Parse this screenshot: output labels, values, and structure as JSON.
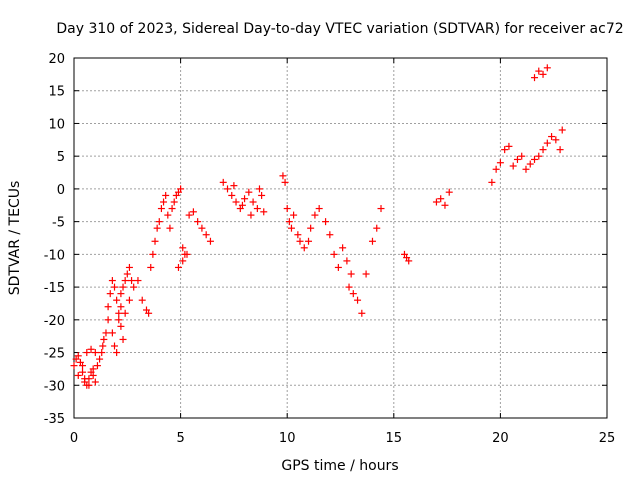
{
  "chart_data": {
    "type": "scatter",
    "title": "Day 310 of 2023, Sidereal Day-to-day VTEC variation (SDTVAR) for receiver ac72",
    "xlabel": "GPS time / hours",
    "ylabel": "SDTVAR / TECUs",
    "xlim": [
      0,
      25
    ],
    "ylim": [
      -35,
      20
    ],
    "xticks": [
      0,
      5,
      10,
      15,
      20,
      25
    ],
    "yticks": [
      -35,
      -30,
      -25,
      -20,
      -15,
      -10,
      -5,
      0,
      5,
      10,
      15,
      20
    ],
    "grid": true,
    "marker": "+",
    "color": "#ff0000",
    "series": [
      {
        "name": "SDTVAR",
        "x": [
          0.0,
          0.1,
          0.2,
          0.3,
          0.4,
          0.5,
          0.6,
          0.7,
          0.8,
          0.9,
          1.0,
          0.2,
          0.4,
          0.6,
          0.8,
          1.0,
          0.5,
          0.7,
          0.9,
          1.1,
          1.3,
          1.4,
          1.5,
          1.6,
          1.2,
          1.35,
          1.6,
          1.7,
          1.8,
          1.9,
          2.0,
          2.1,
          2.2,
          2.3,
          1.8,
          1.9,
          2.0,
          2.1,
          2.2,
          2.3,
          2.4,
          2.5,
          2.6,
          2.7,
          2.2,
          2.4,
          2.6,
          2.8,
          3.0,
          3.2,
          3.4,
          3.5,
          3.6,
          3.7,
          3.8,
          3.9,
          4.0,
          4.1,
          4.2,
          4.3,
          4.4,
          4.5,
          4.6,
          4.7,
          4.8,
          4.9,
          5.0,
          5.1,
          5.2,
          4.9,
          5.1,
          5.3,
          5.4,
          5.6,
          5.8,
          6.0,
          6.2,
          6.4,
          7.0,
          7.2,
          7.4,
          7.6,
          7.8,
          8.0,
          8.2,
          8.4,
          8.6,
          8.8,
          8.9,
          7.5,
          7.9,
          8.3,
          8.7,
          9.8,
          9.9,
          10.0,
          10.1,
          10.2,
          10.3,
          10.5,
          10.6,
          10.8,
          11.0,
          11.1,
          11.3,
          11.5,
          11.8,
          12.0,
          12.2,
          12.4,
          12.6,
          12.8,
          13.0,
          12.9,
          13.1,
          13.3,
          13.5,
          13.7,
          14.0,
          14.2,
          14.4,
          15.5,
          15.6,
          15.7,
          17.0,
          17.2,
          17.4,
          17.6,
          19.6,
          19.8,
          20.0,
          20.2,
          20.4,
          20.6,
          20.8,
          21.0,
          21.2,
          21.4,
          21.6,
          21.8,
          22.0,
          22.2,
          22.4,
          22.6,
          22.8,
          22.9,
          21.6,
          21.8,
          22.0,
          22.2
        ],
        "y": [
          -27,
          -26,
          -25.5,
          -26.5,
          -28,
          -29.5,
          -30,
          -29,
          -28,
          -27.5,
          -29.5,
          -28.5,
          -27,
          -25,
          -24.5,
          -25,
          -29,
          -30,
          -28.5,
          -27,
          -25,
          -23,
          -22,
          -20,
          -26,
          -24,
          -18,
          -16,
          -14,
          -15,
          -17,
          -19,
          -21,
          -23,
          -22,
          -24,
          -25,
          -20,
          -18,
          -15,
          -14,
          -13,
          -12,
          -14,
          -16,
          -19,
          -17,
          -15,
          -14,
          -17,
          -18.5,
          -19,
          -12,
          -10,
          -8,
          -6,
          -5,
          -3,
          -2,
          -1,
          -4,
          -6,
          -3,
          -2,
          -1,
          -0.5,
          0,
          -9,
          -10,
          -12,
          -11,
          -10,
          -4,
          -3.5,
          -5,
          -6,
          -7,
          -8,
          1,
          0,
          -1,
          -2,
          -3,
          -1.5,
          -0.5,
          -2,
          -3,
          -1,
          -3.5,
          0.5,
          -2.5,
          -4,
          0,
          2,
          1,
          -3,
          -5,
          -6,
          -4,
          -7,
          -8,
          -9,
          -8,
          -6,
          -4,
          -3,
          -5,
          -7,
          -10,
          -12,
          -9,
          -11,
          -13,
          -15,
          -16,
          -17,
          -19,
          -13,
          -8,
          -6,
          -3,
          -10,
          -10.5,
          -11,
          -2,
          -1.5,
          -2.5,
          -0.5,
          1,
          3,
          4,
          6,
          6.5,
          3.5,
          4.5,
          5,
          3,
          3.8,
          4.5,
          5,
          6,
          7,
          8,
          7.5,
          6,
          9,
          17,
          18,
          17.5,
          18.5
        ]
      }
    ]
  }
}
